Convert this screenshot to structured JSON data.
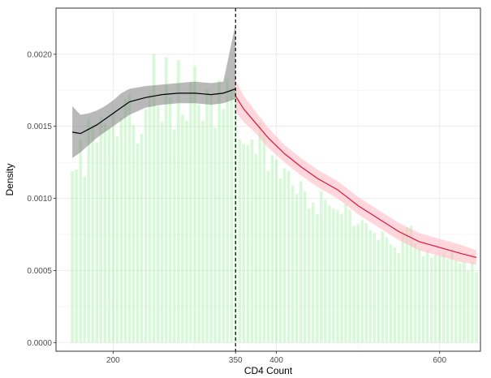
{
  "chart_data": {
    "type": "bar",
    "xlabel": "CD4 Count",
    "ylabel": "Density",
    "xlim": [
      130,
      650
    ],
    "ylim": [
      -6e-05,
      0.00232
    ],
    "x_ticks": [
      {
        "value": 200,
        "label": "200"
      },
      {
        "value": 350,
        "label": "350"
      },
      {
        "value": 400,
        "label": "400"
      },
      {
        "value": 600,
        "label": "600"
      }
    ],
    "y_ticks": [
      {
        "value": 0.0,
        "label": "0.0000"
      },
      {
        "value": 0.0005,
        "label": "0.0005"
      },
      {
        "value": 0.001,
        "label": "0.0010"
      },
      {
        "value": 0.0015,
        "label": "0.0015"
      },
      {
        "value": 0.002,
        "label": "0.0020"
      }
    ],
    "grid": true,
    "cutoff": 350,
    "bin_width": 5,
    "histogram": {
      "x": [
        150,
        155,
        160,
        165,
        170,
        175,
        180,
        185,
        190,
        195,
        200,
        205,
        210,
        215,
        220,
        225,
        230,
        235,
        240,
        245,
        250,
        255,
        260,
        265,
        270,
        275,
        280,
        285,
        290,
        295,
        300,
        305,
        310,
        315,
        320,
        325,
        330,
        335,
        340,
        345,
        350,
        355,
        360,
        365,
        370,
        375,
        380,
        385,
        390,
        395,
        400,
        405,
        410,
        415,
        420,
        425,
        430,
        435,
        440,
        445,
        450,
        455,
        460,
        465,
        470,
        475,
        480,
        485,
        490,
        495,
        500,
        505,
        510,
        515,
        520,
        525,
        530,
        535,
        540,
        545,
        550,
        555,
        560,
        565,
        570,
        575,
        580,
        585,
        590,
        595,
        600,
        605,
        610,
        615,
        620,
        625,
        630,
        635,
        640,
        645
      ],
      "density": [
        0.00119,
        0.0012,
        0.00141,
        0.00115,
        0.00155,
        0.00151,
        0.00139,
        0.00157,
        0.00152,
        0.00149,
        0.00159,
        0.00143,
        0.00156,
        0.00169,
        0.00172,
        0.00151,
        0.00138,
        0.00145,
        0.00162,
        0.00173,
        0.002,
        0.00164,
        0.00153,
        0.00198,
        0.0017,
        0.00148,
        0.00196,
        0.00158,
        0.00154,
        0.00181,
        0.00192,
        0.00165,
        0.00154,
        0.00176,
        0.00172,
        0.00149,
        0.00182,
        0.00162,
        0.00183,
        0.00176,
        0.00175,
        0.00141,
        0.00138,
        0.00137,
        0.00141,
        0.00131,
        0.00153,
        0.00146,
        0.00119,
        0.0013,
        0.00127,
        0.00114,
        0.00121,
        0.00119,
        0.00109,
        0.00103,
        0.00112,
        0.00105,
        0.00093,
        0.00097,
        0.00089,
        0.00105,
        0.00099,
        0.00095,
        0.00093,
        0.00092,
        0.00089,
        0.00096,
        0.00092,
        0.00081,
        0.00082,
        0.00085,
        0.00083,
        0.00078,
        0.00076,
        0.00071,
        0.00077,
        0.00073,
        0.00068,
        0.00066,
        0.00062,
        0.00078,
        0.0008,
        0.00081,
        0.00069,
        0.00065,
        0.0006,
        0.00064,
        0.00059,
        0.00061,
        0.0006,
        0.00062,
        0.00058,
        0.00065,
        0.00057,
        0.00055,
        0.00056,
        0.0005,
        0.00056,
        0.00049
      ],
      "color": "#90EE90"
    },
    "fits": [
      {
        "side": "below",
        "color": "#000000",
        "band_color": "#808080",
        "x": [
          150,
          160,
          170,
          180,
          190,
          200,
          210,
          220,
          240,
          260,
          280,
          300,
          320,
          335,
          350
        ],
        "y": [
          0.00146,
          0.00145,
          0.00148,
          0.00151,
          0.00155,
          0.00159,
          0.00163,
          0.00167,
          0.0017,
          0.00172,
          0.00173,
          0.00173,
          0.00172,
          0.00173,
          0.00176
        ],
        "ymin": [
          0.00128,
          0.00132,
          0.00137,
          0.00142,
          0.00146,
          0.0015,
          0.00154,
          0.00158,
          0.00163,
          0.00165,
          0.00166,
          0.00166,
          0.00165,
          0.00166,
          0.00169
        ],
        "ymax": [
          0.00164,
          0.00158,
          0.00159,
          0.00161,
          0.00164,
          0.00168,
          0.00173,
          0.00176,
          0.00178,
          0.00179,
          0.0018,
          0.00181,
          0.0018,
          0.00181,
          0.00221
        ]
      },
      {
        "side": "above",
        "color": "#DC143C",
        "band_color": "#FFB6C1",
        "x": [
          350,
          360,
          375,
          390,
          410,
          430,
          450,
          475,
          500,
          525,
          550,
          575,
          600,
          625,
          645
        ],
        "y": [
          0.00171,
          0.00162,
          0.00152,
          0.00142,
          0.00131,
          0.00122,
          0.00114,
          0.00106,
          0.00095,
          0.00086,
          0.00077,
          0.0007,
          0.00066,
          0.00062,
          0.00059
        ],
        "ymin": [
          0.0016,
          0.00153,
          0.00145,
          0.00135,
          0.00125,
          0.00116,
          0.00108,
          0.001,
          0.00089,
          0.0008,
          0.00071,
          0.00064,
          0.0006,
          0.00056,
          0.00054
        ],
        "ymax": [
          0.00182,
          0.00171,
          0.0016,
          0.00149,
          0.00137,
          0.00128,
          0.0012,
          0.00112,
          0.00101,
          0.00092,
          0.00083,
          0.00076,
          0.00072,
          0.00068,
          0.00064
        ]
      }
    ]
  }
}
